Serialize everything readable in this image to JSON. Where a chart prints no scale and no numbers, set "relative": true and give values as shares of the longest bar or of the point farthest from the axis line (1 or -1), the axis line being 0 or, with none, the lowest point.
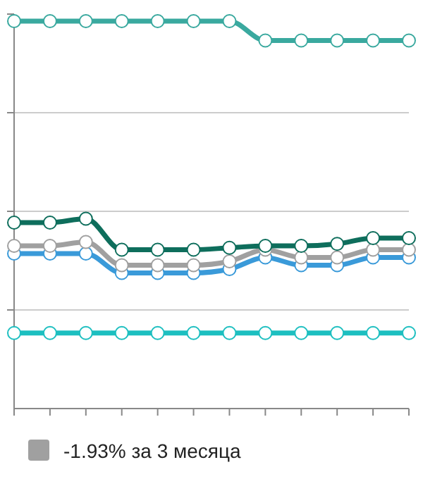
{
  "chart_data": {
    "type": "line",
    "relative": true,
    "categories": [
      null,
      null,
      null,
      null,
      null,
      null,
      null,
      null,
      null,
      null,
      null,
      null
    ],
    "series": [
      {
        "color": "#3aa99f",
        "values": [
          1,
          1,
          1,
          1,
          1,
          1,
          1,
          0.95,
          0.95,
          0.95,
          0.95,
          0.95
        ]
      },
      {
        "color": "#0e6e5c",
        "values": [
          0.48,
          0.48,
          0.49,
          0.41,
          0.41,
          0.41,
          0.415,
          0.42,
          0.42,
          0.425,
          0.44,
          0.44
        ]
      },
      {
        "name": "-1.93% за 3 месяца",
        "color": "#a0a0a0",
        "values": [
          0.42,
          0.42,
          0.43,
          0.37,
          0.37,
          0.37,
          0.38,
          0.41,
          0.39,
          0.39,
          0.41,
          0.41
        ]
      },
      {
        "color": "#3a9ad9",
        "values": [
          0.4,
          0.4,
          0.4,
          0.35,
          0.35,
          0.35,
          0.36,
          0.39,
          0.37,
          0.37,
          0.39,
          0.39
        ]
      },
      {
        "color": "#1dbfc0",
        "values": [
          0.195,
          0.195,
          0.195,
          0.195,
          0.195,
          0.195,
          0.195,
          0.195,
          0.195,
          0.195,
          0.195,
          0.195
        ]
      }
    ],
    "grid": "y",
    "legend": "bottom",
    "marker": "circle",
    "line_style": "solid"
  }
}
